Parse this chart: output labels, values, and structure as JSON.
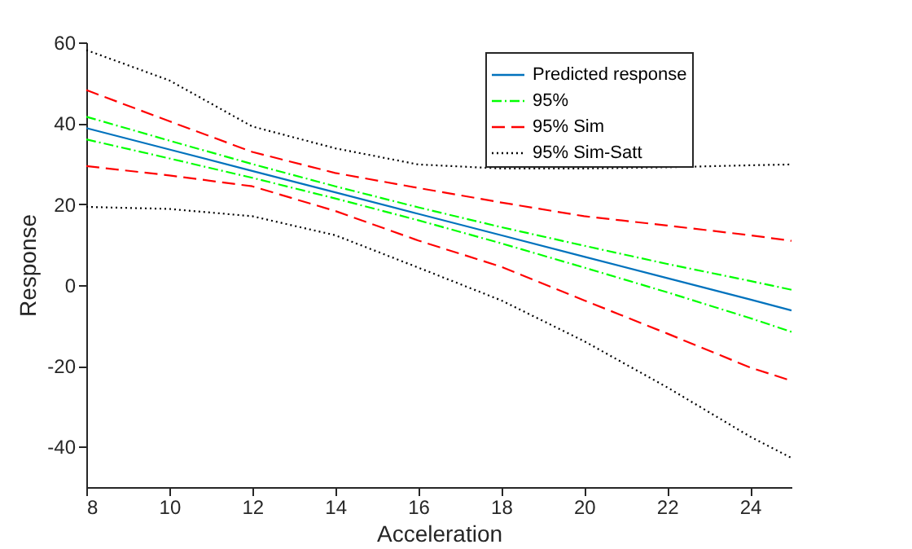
{
  "chart_data": {
    "type": "line",
    "xlabel": "Acceleration",
    "ylabel": "Response",
    "x": [
      8,
      10,
      12,
      14,
      16,
      18,
      20,
      22,
      24,
      25
    ],
    "xlim": [
      8,
      25
    ],
    "xticks": [
      8,
      10,
      12,
      14,
      16,
      18,
      20,
      22,
      24
    ],
    "ylim": [
      -50,
      60
    ],
    "yticks": [
      -40,
      -20,
      0,
      20,
      40,
      60
    ],
    "grid": false,
    "legend": "top right",
    "marker": "none",
    "series": [
      {
        "name": "Predicted response",
        "color": "#0072bd",
        "line_style": "solid",
        "values": [
          38.8,
          33.5,
          28.2,
          22.9,
          17.6,
          12.3,
          7.0,
          1.7,
          -3.6,
          -6.3
        ]
      },
      {
        "name": "95%",
        "color": "#00ff00",
        "line_style": "dashdot",
        "values": [
          41.6,
          35.7,
          29.9,
          24.4,
          19.2,
          14.3,
          9.7,
          5.2,
          1.0,
          -1.2
        ]
      },
      {
        "color": "#00ff00",
        "line_style": "dashdot",
        "values": [
          36.0,
          31.3,
          26.5,
          21.4,
          16.0,
          10.3,
          4.3,
          -1.8,
          -8.2,
          -11.6
        ]
      },
      {
        "name": "95% Sim",
        "color": "#ff0000",
        "line_style": "dashed",
        "values": [
          48.2,
          40.5,
          32.9,
          27.7,
          24.0,
          20.4,
          17.0,
          14.7,
          12.3,
          10.9
        ]
      },
      {
        "color": "#ff0000",
        "line_style": "dashed",
        "values": [
          29.4,
          27.1,
          24.4,
          18.3,
          11.0,
          4.5,
          -3.8,
          -12.0,
          -20.4,
          -23.7
        ]
      },
      {
        "name": "95% Sim-Satt",
        "color": "#000000",
        "line_style": "dotted",
        "values": [
          58.1,
          50.6,
          39.2,
          33.8,
          29.8,
          28.8,
          28.8,
          29.1,
          29.6,
          29.8
        ]
      },
      {
        "color": "#000000",
        "line_style": "dotted",
        "values": [
          19.3,
          18.8,
          17.0,
          12.3,
          4.3,
          -3.8,
          -13.9,
          -25.3,
          -37.5,
          -42.8
        ]
      }
    ]
  }
}
